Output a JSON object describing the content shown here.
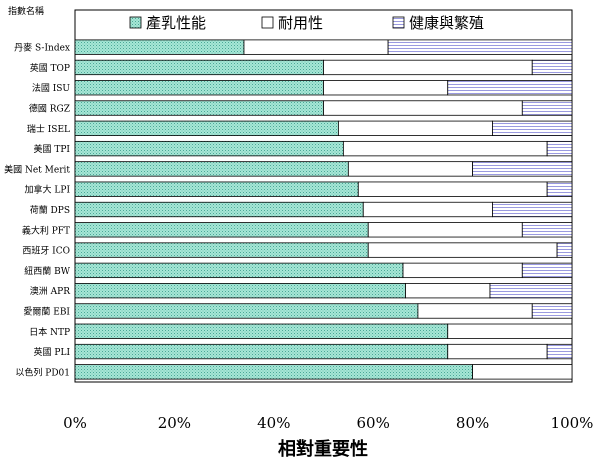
{
  "chart_data": {
    "type": "bar",
    "orientation": "horizontal",
    "stacked": true,
    "normalized_percent": true,
    "category_header": "指數名稱",
    "categories": [
      "丹麥 S-Index",
      "英國 TOP",
      "法國 ISU",
      "德國 RGZ",
      "瑞士 ISEL",
      "美國 TPI",
      "美國 Net Merit",
      "加拿大 LPI",
      "荷蘭 DPS",
      "義大利 PFT",
      "西班牙 ICO",
      "紐西蘭 BW",
      "澳洲 APR",
      "愛爾蘭 EBI",
      "日本 NTP",
      "英國 PLI",
      "以色列 PD01"
    ],
    "series": [
      {
        "name": "產乳性能",
        "color": "#9de4d3",
        "pattern": "teal-dots",
        "values": [
          34,
          50,
          50,
          50,
          53,
          54,
          55,
          57,
          58,
          59,
          59,
          66,
          66.5,
          69,
          75,
          75,
          80
        ]
      },
      {
        "name": "耐用性",
        "color": "#ffffff",
        "pattern": "plain-white",
        "values": [
          29,
          42,
          25,
          40,
          31,
          41,
          25,
          38,
          26,
          31,
          38,
          24,
          17,
          23,
          25,
          20,
          20
        ]
      },
      {
        "name": "健康與繁殖",
        "color": "#c8c8f0",
        "pattern": "lavender-lines",
        "values": [
          37,
          8,
          25,
          10,
          16,
          5,
          20,
          5,
          16,
          10,
          3,
          10,
          16.5,
          8,
          0,
          5,
          0
        ]
      }
    ],
    "x_ticks": [
      "0%",
      "20%",
      "40%",
      "60%",
      "80%",
      "100%"
    ],
    "xlim": [
      0,
      100
    ],
    "xlabel": "相對重要性",
    "legend_position": "top"
  }
}
